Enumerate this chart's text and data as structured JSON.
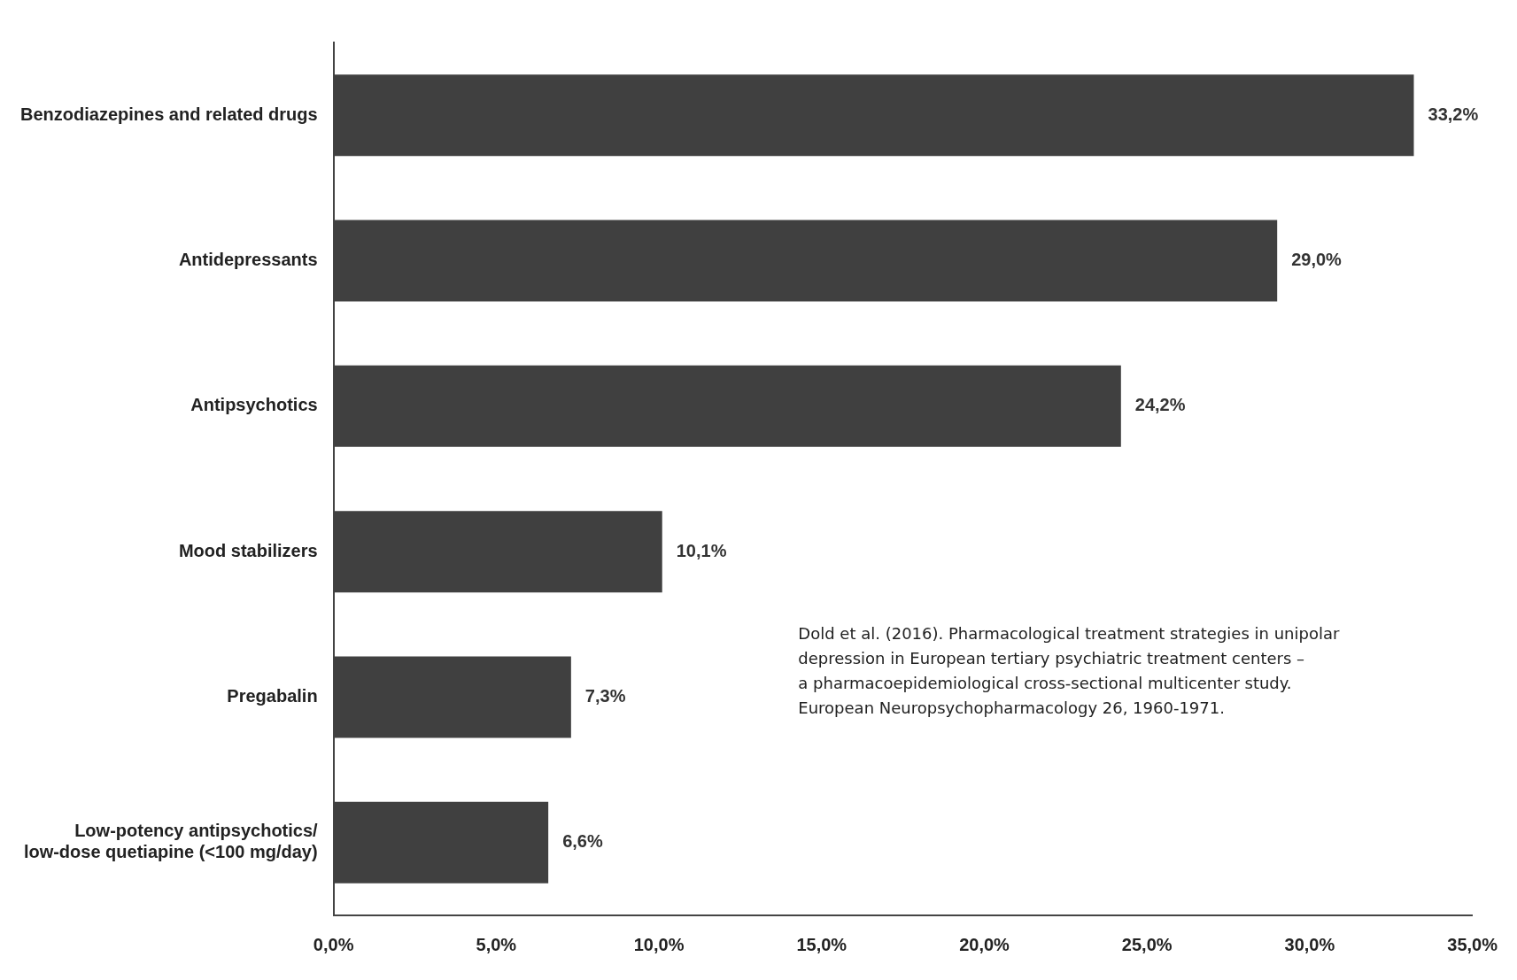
{
  "chart_data": {
    "type": "bar",
    "orientation": "horizontal",
    "categories": [
      "Benzodiazepines and related drugs",
      "Antidepressants",
      "Antipsychotics",
      "Mood stabilizers",
      "Pregabalin",
      "Low-potency antipsychotics/\nlow-dose quetiapine (<100 mg/day)"
    ],
    "values": [
      33.2,
      29.0,
      24.2,
      10.1,
      7.3,
      6.6
    ],
    "value_labels": [
      "33,2%",
      "29,0%",
      "24,2%",
      "10,1%",
      "7,3%",
      "6,6%"
    ],
    "color": "#404040",
    "xlim": [
      0,
      35
    ],
    "xticks": [
      {
        "value": 0,
        "label": "0,0%"
      },
      {
        "value": 5,
        "label": "5,0%"
      },
      {
        "value": 10,
        "label": "10,0%"
      },
      {
        "value": 15,
        "label": "15,0%"
      },
      {
        "value": 20,
        "label": "20,0%"
      },
      {
        "value": 25,
        "label": "25,0%"
      },
      {
        "value": 30,
        "label": "30,0%"
      },
      {
        "value": 35,
        "label": "35,0%"
      }
    ],
    "grid": false,
    "legend": false,
    "annotations": [
      "Dold et al. (2016). Pharmacological treatment strategies in unipolar\ndepression in European tertiary psychiatric treatment centers –\na pharmacoepidemiological cross-sectional multicenter study.\nEuropean Neuropsychopharmacology 26, 1960-1971."
    ]
  }
}
